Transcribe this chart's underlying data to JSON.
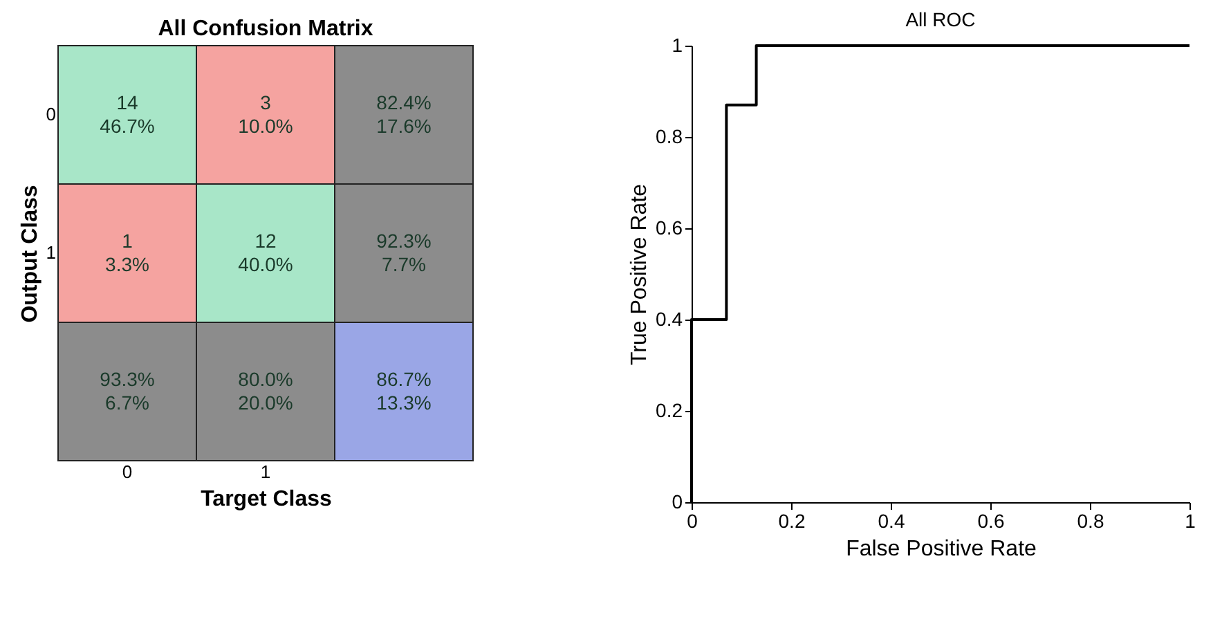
{
  "chart_data": [
    {
      "type": "heatmap",
      "title": "All Confusion Matrix",
      "xlabel": "Target Class",
      "ylabel": "Output Class",
      "categories": [
        "0",
        "1",
        null
      ],
      "y_categories": [
        "0",
        "1",
        null
      ],
      "cells": [
        [
          14,
          3,
          82.4
        ],
        [
          1,
          12,
          92.3
        ],
        [
          93.3,
          80.0,
          86.7
        ]
      ],
      "cell_labels": [
        [
          "14",
          "3",
          "82.4%"
        ],
        [
          "1",
          "12",
          "92.3%"
        ],
        [
          "93.3%",
          "80.0%",
          "86.7%"
        ]
      ],
      "annotations": [
        "46.7%",
        "10.0%",
        "17.6%",
        "3.3%",
        "40.0%",
        "7.7%",
        "6.7%",
        "20.0%",
        "13.3%"
      ],
      "colors": [
        [
          "#a8e6c8",
          "#f5a3a0",
          "#8c8c8c"
        ],
        [
          "#f5a3a0",
          "#a8e6c8",
          "#8c8c8c"
        ],
        [
          "#8c8c8c",
          "#8c8c8c",
          "#9aa6e6"
        ]
      ]
    },
    {
      "type": "line",
      "title": "All ROC",
      "xlabel": "False Positive Rate",
      "ylabel": "True Positive Rate",
      "x": [
        0,
        0,
        0.07,
        0.07,
        0.13,
        0.13,
        1
      ],
      "series": [
        {
          "color": "#000000",
          "values": [
            0,
            0.4,
            0.4,
            0.87,
            0.87,
            1,
            1
          ]
        }
      ],
      "xlim": [
        0,
        1
      ],
      "ylim": [
        0,
        1
      ],
      "xticks": [
        0,
        0.2,
        0.4,
        0.6,
        0.8,
        1
      ],
      "yticks": [
        0,
        0.2,
        0.4,
        0.6,
        0.8,
        1
      ],
      "grid": false,
      "marker": "none",
      "line_style": "solid"
    }
  ]
}
